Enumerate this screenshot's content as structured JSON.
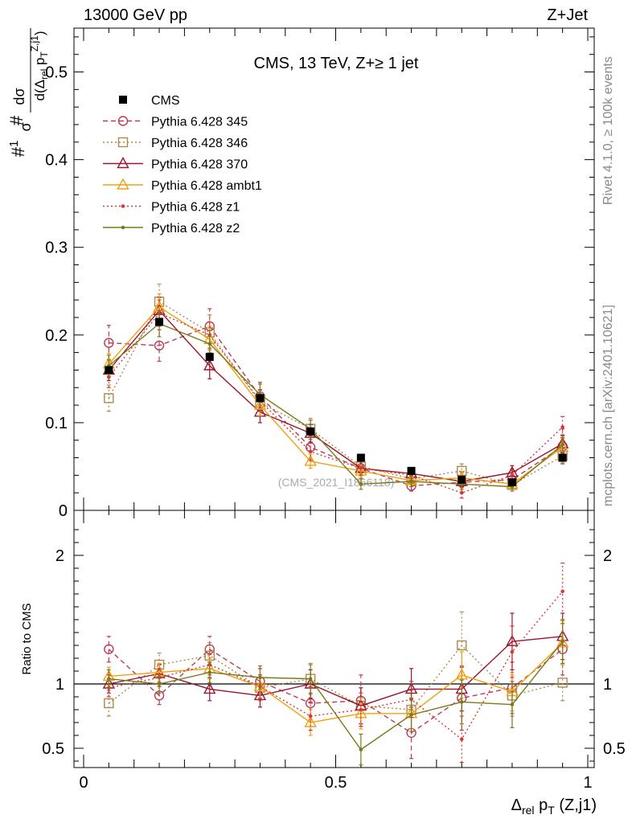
{
  "header": {
    "left": "13000 GeV pp",
    "right": "Z+Jet"
  },
  "side_labels": {
    "rivet": "Rivet 4.1.0, ≥ 100k events",
    "mcplots": "mcplots.cern.ch [arXiv:2401.10621]"
  },
  "chart_data": [
    {
      "type": "line",
      "panel": "main",
      "title": "CMS, 13 TeV, Z+≥ 1 jet",
      "watermark": "(CMS_2021_I1866118)",
      "ylabel": "#1/σ # dσ/d(Δrel pT(Z,j1))",
      "ylim": [
        0,
        0.55
      ],
      "yticks": [
        0,
        0.1,
        0.2,
        0.3,
        0.4,
        0.5
      ],
      "ytick_labels": [
        "0",
        "0.1",
        "0.2",
        "0.3",
        "0.4",
        "0.5"
      ],
      "x": [
        0.05,
        0.15,
        0.25,
        0.35,
        0.45,
        0.55,
        0.65,
        0.75,
        0.85,
        0.95
      ],
      "data": {
        "name": "CMS",
        "values": [
          0.16,
          0.215,
          0.175,
          0.128,
          0.09,
          0.06,
          0.045,
          0.035,
          0.032,
          0.06
        ],
        "errors": [
          0.004,
          0.004,
          0.004,
          0.003,
          0.003,
          0.002,
          0.002,
          0.002,
          0.002,
          0.002
        ]
      },
      "series": [
        {
          "name": "Pythia 6.428 345",
          "color": "#b83c56",
          "dash": "6,4",
          "marker": "circle",
          "values": [
            0.191,
            0.188,
            0.21,
            0.13,
            0.072,
            0.048,
            0.028,
            0.032,
            0.035,
            0.073
          ],
          "errors": [
            0.02,
            0.018,
            0.02,
            0.016,
            0.013,
            0.012,
            0.006,
            0.012,
            0.01,
            0.02
          ]
        },
        {
          "name": "Pythia 6.428 346",
          "color": "#b0894a",
          "dash": "2,3",
          "marker": "square",
          "values": [
            0.128,
            0.238,
            0.203,
            0.123,
            0.093,
            0.05,
            0.036,
            0.045,
            0.029,
            0.062
          ],
          "errors": [
            0.015,
            0.02,
            0.02,
            0.015,
            0.012,
            0.008,
            0.006,
            0.008,
            0.005,
            0.008
          ]
        },
        {
          "name": "Pythia 6.428 370",
          "color": "#9a1530",
          "dash": "",
          "marker": "triangle",
          "values": [
            0.16,
            0.228,
            0.165,
            0.112,
            0.088,
            0.048,
            0.042,
            0.033,
            0.043,
            0.076
          ],
          "errors": [
            0.012,
            0.015,
            0.015,
            0.012,
            0.01,
            0.008,
            0.006,
            0.006,
            0.008,
            0.01
          ]
        },
        {
          "name": "Pythia 6.428 ambt1",
          "color": "#f0a010",
          "dash": "",
          "marker": "triangle",
          "values": [
            0.167,
            0.232,
            0.195,
            0.12,
            0.056,
            0.045,
            0.034,
            0.037,
            0.03,
            0.072
          ],
          "errors": [
            0.012,
            0.015,
            0.015,
            0.012,
            0.008,
            0.007,
            0.005,
            0.006,
            0.005,
            0.01
          ]
        },
        {
          "name": "Pythia 6.428 z1",
          "color": "#d63838",
          "dash": "2,3",
          "marker": "dot",
          "values": [
            0.152,
            0.225,
            0.2,
            0.125,
            0.067,
            0.048,
            0.04,
            0.02,
            0.04,
            0.095
          ],
          "errors": [
            0.012,
            0.015,
            0.015,
            0.012,
            0.01,
            0.008,
            0.006,
            0.006,
            0.006,
            0.012
          ]
        },
        {
          "name": "Pythia 6.428 z2",
          "color": "#7a7a1a",
          "dash": "",
          "marker": "dot",
          "values": [
            0.165,
            0.213,
            0.19,
            0.132,
            0.093,
            0.03,
            0.033,
            0.03,
            0.027,
            0.075
          ],
          "errors": [
            0.012,
            0.015,
            0.015,
            0.012,
            0.01,
            0.006,
            0.006,
            0.006,
            0.005,
            0.01
          ]
        }
      ]
    },
    {
      "type": "line",
      "panel": "ratio",
      "ylabel": "Ratio to CMS",
      "xlabel": "Δrel pT (Z,j1)",
      "xlim": [
        0,
        1
      ],
      "xticks": [
        0,
        0.5,
        1
      ],
      "xtick_labels": [
        "0",
        "0.5",
        "1"
      ],
      "ylim": [
        0.35,
        2.35
      ],
      "yticks": [
        0.5,
        1,
        2
      ],
      "ytick_labels": [
        "0.5",
        "1",
        "2"
      ],
      "x": [
        0.05,
        0.15,
        0.25,
        0.35,
        0.45,
        0.55,
        0.65,
        0.75,
        0.85,
        0.95
      ],
      "series": [
        {
          "name": "Pythia 6.428 345",
          "values": [
            1.27,
            0.91,
            1.27,
            1.02,
            0.85,
            0.87,
            0.62,
            0.89,
            0.97,
            1.27
          ],
          "errors": [
            0.1,
            0.07,
            0.1,
            0.1,
            0.13,
            0.2,
            0.2,
            0.25,
            0.2,
            0.2
          ]
        },
        {
          "name": "Pythia 6.428 346",
          "values": [
            0.85,
            1.15,
            1.22,
            0.97,
            1.04,
            0.83,
            0.8,
            1.3,
            0.91,
            1.01
          ],
          "errors": [
            0.1,
            0.09,
            0.1,
            0.1,
            0.12,
            0.14,
            0.15,
            0.26,
            0.16,
            0.14
          ]
        },
        {
          "name": "Pythia 6.428 370",
          "values": [
            1.0,
            1.08,
            0.96,
            0.91,
            1.0,
            0.83,
            0.96,
            0.96,
            1.33,
            1.37
          ],
          "errors": [
            0.07,
            0.07,
            0.09,
            0.09,
            0.11,
            0.14,
            0.16,
            0.17,
            0.22,
            0.18
          ]
        },
        {
          "name": "Pythia 6.428 ambt1",
          "values": [
            1.06,
            1.09,
            1.12,
            0.98,
            0.7,
            0.77,
            0.77,
            1.07,
            0.94,
            1.32
          ],
          "errors": [
            0.07,
            0.07,
            0.08,
            0.09,
            0.1,
            0.12,
            0.12,
            0.18,
            0.15,
            0.17
          ]
        },
        {
          "name": "Pythia 6.428 z1",
          "values": [
            0.97,
            1.05,
            1.15,
            0.98,
            0.75,
            0.8,
            0.88,
            0.57,
            1.25,
            1.72
          ],
          "errors": [
            0.07,
            0.07,
            0.08,
            0.09,
            0.11,
            0.13,
            0.14,
            0.18,
            0.2,
            0.22
          ]
        },
        {
          "name": "Pythia 6.428 z2",
          "values": [
            1.04,
            1.0,
            1.09,
            1.05,
            1.04,
            0.49,
            0.76,
            0.86,
            0.84,
            1.33
          ],
          "errors": [
            0.07,
            0.07,
            0.08,
            0.09,
            0.11,
            0.12,
            0.13,
            0.17,
            0.18,
            0.17
          ]
        }
      ]
    }
  ]
}
